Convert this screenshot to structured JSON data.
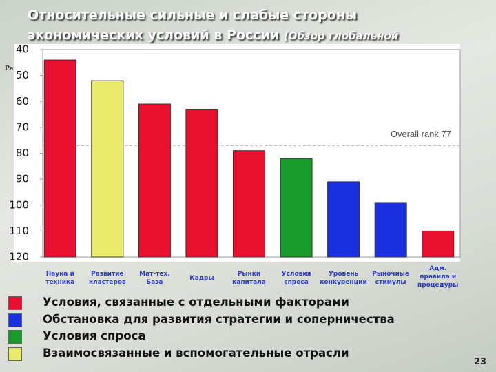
{
  "slide_number": "23",
  "chart_data": {
    "type": "bar",
    "title": [
      "Относительные сильные и слабые стороны",
      "экономических условий в России"
    ],
    "title_note": "(Обзор глобальной",
    "axis_fragment": "Ре",
    "categories": [
      "Наука и\nтехника",
      "Развитие\nкластеров",
      "Мат-тех.\nБаза",
      "Кадры",
      "Рынки\nкапитала",
      "Условия\nспроса",
      "Уровень\nконкуренции",
      "Рыночные\nстимулы",
      "Адм.\nправила и\nпроцедуры"
    ],
    "values": [
      44,
      52,
      61,
      63,
      79,
      82,
      91,
      99,
      110
    ],
    "colors": [
      "#e8102e",
      "#eaea6c",
      "#e8102e",
      "#e8102e",
      "#e8102e",
      "#1a9a2a",
      "#1a30e0",
      "#1a30e0",
      "#e8102e"
    ],
    "ylim": [
      40,
      120
    ],
    "y_inverted": true,
    "yticks": [
      40,
      50,
      60,
      70,
      80,
      90,
      100,
      110,
      120
    ],
    "reference_line": {
      "value": 77,
      "label": "Overall rank 77"
    },
    "legend": [
      {
        "label": "Условия, связанные с отдельными факторами",
        "color": "#e8102e"
      },
      {
        "label": "Обстановка для развития стратегии и соперничества",
        "color": "#1a30e0"
      },
      {
        "label": "Условия спроса",
        "color": "#1a9a2a"
      },
      {
        "label": "Взаимосвязанные и вспомогательные отрасли",
        "color": "#eaea6c"
      }
    ]
  }
}
